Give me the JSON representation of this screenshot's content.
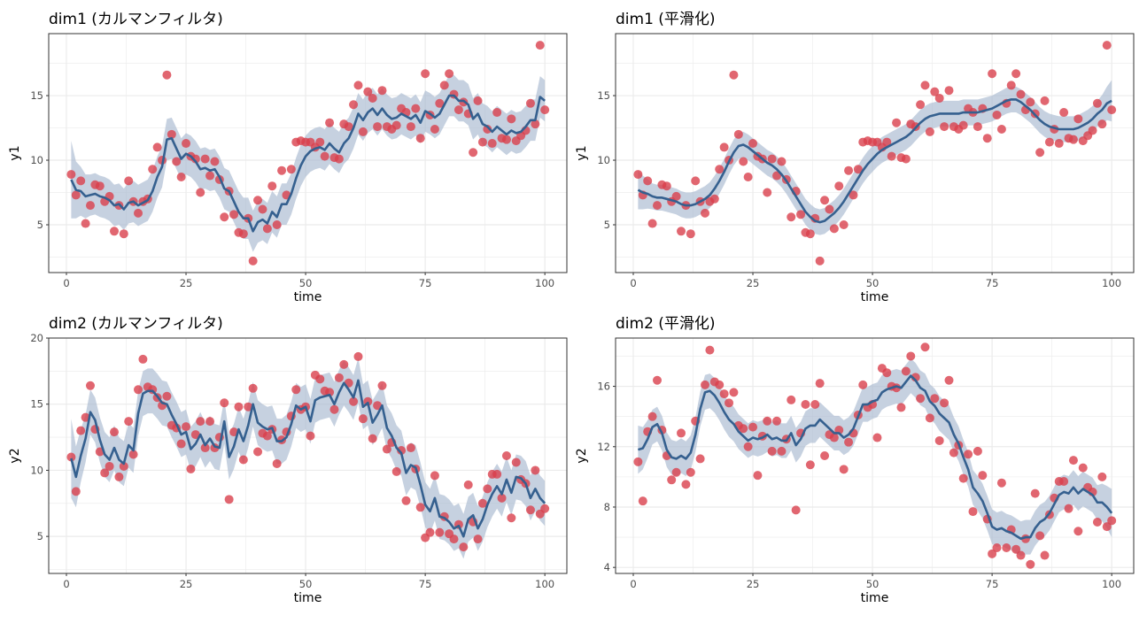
{
  "colors": {
    "point": "#d9404c",
    "line": "#35608f",
    "band": "#a7b9d0",
    "grid": "#ebebeb",
    "border": "#333333"
  },
  "series": {
    "y1_obs": [
      8.9,
      7.3,
      8.4,
      5.1,
      6.5,
      8.1,
      8.0,
      6.8,
      7.2,
      4.5,
      6.5,
      4.3,
      8.4,
      6.8,
      5.9,
      6.8,
      7.0,
      9.3,
      11.0,
      10.0,
      16.6,
      12.0,
      9.9,
      8.7,
      11.3,
      10.3,
      10.1,
      7.5,
      10.1,
      8.8,
      9.9,
      8.5,
      5.6,
      7.6,
      5.8,
      4.4,
      4.3,
      5.5,
      2.2,
      6.9,
      6.2,
      4.7,
      8.0,
      5.0,
      9.2,
      7.3,
      9.3,
      11.4,
      11.5,
      11.4,
      11.4,
      11.0,
      11.4,
      10.3,
      12.9,
      10.2,
      10.1,
      12.8,
      12.6,
      14.3,
      15.8,
      12.2,
      15.3,
      14.8,
      12.6,
      15.4,
      12.6,
      12.4,
      12.7,
      14.0,
      13.7,
      12.6,
      14.0,
      11.7,
      16.7,
      13.5,
      12.4,
      14.4,
      15.8,
      16.7,
      15.1,
      13.9,
      14.5,
      13.6,
      10.6,
      14.6,
      11.4,
      12.4,
      11.3,
      13.7,
      11.7,
      11.6,
      13.2,
      11.5,
      11.9,
      12.3,
      14.4,
      12.8,
      18.9,
      13.9
    ],
    "y2_obs": [
      11.0,
      8.4,
      13.0,
      14.0,
      16.4,
      13.1,
      11.4,
      9.8,
      10.3,
      12.9,
      9.5,
      10.3,
      13.7,
      11.2,
      16.1,
      18.4,
      16.3,
      16.1,
      15.5,
      14.9,
      15.6,
      13.4,
      13.2,
      12.0,
      13.3,
      10.1,
      12.7,
      13.7,
      11.7,
      13.7,
      11.7,
      12.5,
      15.1,
      7.8,
      12.9,
      14.8,
      10.8,
      14.8,
      16.2,
      11.4,
      12.8,
      12.6,
      13.1,
      10.5,
      12.3,
      12.9,
      14.1,
      16.1,
      14.6,
      14.8,
      12.6,
      17.2,
      16.9,
      16.0,
      15.9,
      14.6,
      17.0,
      18.0,
      16.6,
      15.2,
      18.6,
      13.9,
      15.2,
      12.4,
      14.9,
      16.4,
      11.6,
      12.1,
      9.9,
      11.5,
      7.7,
      11.7,
      10.1,
      7.2,
      4.9,
      5.3,
      9.6,
      5.3,
      6.5,
      5.2,
      4.8,
      5.9,
      4.2,
      8.9,
      6.1,
      4.8,
      7.5,
      8.6,
      9.7,
      9.7,
      7.9,
      11.1,
      6.4,
      10.6,
      9.3,
      9.0,
      7.0,
      10.0,
      6.7,
      7.1
    ],
    "y1_filtered": [
      8.5,
      7.7,
      7.6,
      7.2,
      7.3,
      7.4,
      7.2,
      7.1,
      6.9,
      6.5,
      6.6,
      6.2,
      6.7,
      6.8,
      6.5,
      6.7,
      6.9,
      7.6,
      8.7,
      9.5,
      11.6,
      11.7,
      10.9,
      10.1,
      10.5,
      10.3,
      9.9,
      9.3,
      9.4,
      9.2,
      9.3,
      8.7,
      7.8,
      7.6,
      6.8,
      6.0,
      5.5,
      5.5,
      4.5,
      5.2,
      5.4,
      5.1,
      6.0,
      5.6,
      6.6,
      6.6,
      7.4,
      8.6,
      9.6,
      10.3,
      10.7,
      10.9,
      11.0,
      10.8,
      11.3,
      10.9,
      10.6,
      11.3,
      11.7,
      12.5,
      13.6,
      13.1,
      13.7,
      14.0,
      13.5,
      14.0,
      13.5,
      13.2,
      13.3,
      13.6,
      13.4,
      13.2,
      13.5,
      12.9,
      13.8,
      13.6,
      13.3,
      13.6,
      14.3,
      15.0,
      15.0,
      14.6,
      14.6,
      14.3,
      13.2,
      13.6,
      12.8,
      12.6,
      12.2,
      12.6,
      12.3,
      12.0,
      12.3,
      12.1,
      12.2,
      12.6,
      13.1,
      13.1,
      14.9,
      14.6
    ],
    "y1_smoothed": [
      7.7,
      7.5,
      7.4,
      7.2,
      7.1,
      7.1,
      7.0,
      6.9,
      6.8,
      6.6,
      6.5,
      6.5,
      6.6,
      6.8,
      7.0,
      7.3,
      7.8,
      8.4,
      9.1,
      9.9,
      10.6,
      11.1,
      11.2,
      11.0,
      10.7,
      10.4,
      10.1,
      9.8,
      9.6,
      9.3,
      8.9,
      8.4,
      7.8,
      7.2,
      6.6,
      6.0,
      5.6,
      5.3,
      5.2,
      5.3,
      5.6,
      5.9,
      6.3,
      6.8,
      7.4,
      8.0,
      8.6,
      9.2,
      9.7,
      10.1,
      10.5,
      10.8,
      11.0,
      11.2,
      11.4,
      11.6,
      11.8,
      12.1,
      12.5,
      12.9,
      13.2,
      13.4,
      13.5,
      13.6,
      13.6,
      13.6,
      13.6,
      13.6,
      13.7,
      13.7,
      13.7,
      13.7,
      13.8,
      13.9,
      14.0,
      14.2,
      14.4,
      14.6,
      14.7,
      14.7,
      14.5,
      14.2,
      13.9,
      13.5,
      13.1,
      12.8,
      12.6,
      12.5,
      12.4,
      12.4,
      12.4,
      12.4,
      12.5,
      12.7,
      12.9,
      13.2,
      13.6,
      13.9,
      14.4,
      14.6
    ],
    "y2_filtered": [
      10.9,
      9.5,
      11.1,
      12.4,
      14.4,
      13.8,
      12.3,
      11.2,
      10.8,
      11.7,
      10.8,
      10.5,
      11.9,
      11.5,
      14.3,
      15.8,
      16.0,
      16.0,
      15.6,
      15.1,
      15.0,
      14.2,
      13.5,
      12.7,
      12.9,
      11.6,
      12.0,
      12.7,
      11.9,
      12.4,
      11.8,
      11.7,
      13.7,
      11.0,
      11.8,
      13.1,
      12.2,
      13.4,
      15.0,
      13.6,
      13.3,
      13.1,
      13.2,
      12.2,
      12.2,
      12.5,
      13.5,
      14.9,
      14.6,
      14.8,
      13.7,
      15.3,
      15.5,
      15.6,
      15.7,
      15.0,
      15.9,
      16.6,
      16.1,
      15.5,
      16.8,
      14.8,
      15.1,
      13.6,
      14.2,
      14.9,
      13.2,
      12.6,
      11.7,
      11.3,
      9.8,
      10.4,
      10.2,
      8.9,
      7.4,
      6.9,
      7.9,
      6.5,
      6.4,
      6.1,
      5.6,
      5.8,
      5.0,
      6.3,
      6.6,
      5.6,
      6.3,
      7.4,
      8.2,
      8.8,
      8.2,
      9.3,
      8.3,
      9.5,
      9.4,
      9.0,
      7.9,
      8.6,
      7.9,
      7.5
    ],
    "y2_smoothed": [
      11.8,
      11.9,
      12.5,
      13.3,
      13.5,
      12.9,
      11.8,
      11.3,
      11.2,
      11.4,
      11.2,
      11.6,
      12.8,
      14.5,
      15.6,
      15.7,
      15.4,
      14.9,
      14.3,
      13.8,
      13.5,
      13.0,
      12.7,
      12.4,
      12.6,
      12.5,
      12.6,
      12.8,
      12.5,
      12.6,
      12.4,
      12.4,
      12.9,
      12.1,
      12.5,
      13.2,
      13.4,
      13.4,
      13.8,
      13.5,
      13.2,
      12.9,
      12.9,
      12.6,
      12.8,
      13.2,
      14.0,
      14.8,
      14.8,
      15.0,
      15.1,
      15.6,
      15.8,
      15.9,
      16.0,
      15.9,
      16.3,
      16.7,
      16.4,
      15.9,
      15.7,
      15.0,
      14.7,
      14.2,
      13.9,
      13.6,
      12.8,
      12.2,
      11.3,
      10.5,
      9.3,
      8.9,
      8.4,
      7.6,
      6.7,
      6.5,
      6.6,
      6.4,
      6.3,
      6.1,
      5.9,
      6.0,
      6.0,
      6.6,
      7.0,
      7.2,
      7.6,
      8.2,
      8.8,
      9.0,
      8.9,
      9.3,
      8.9,
      9.2,
      9.0,
      8.8,
      8.3,
      8.3,
      8.0,
      7.6
    ]
  },
  "chart_data": [
    {
      "type": "line",
      "title": "dim1 (カルマンフィルタ)",
      "xlabel": "time",
      "ylabel": "y1",
      "x": "1..100",
      "observed": "y1_obs",
      "mean": "y1_filtered",
      "band_halfwidth_start": [
        3.0,
        2.2,
        1.9,
        1.7
      ],
      "band_halfwidth_end": [],
      "band_halfwidth": 1.6,
      "xlim": [
        -3.7,
        104.6
      ],
      "ylim": [
        1.3,
        19.8
      ],
      "xticks": [
        "0",
        "25",
        "50",
        "75",
        "100"
      ],
      "yticks": [
        "5",
        "10",
        "15"
      ],
      "grid": true
    },
    {
      "type": "line",
      "title": "dim1 (平滑化)",
      "xlabel": "time",
      "ylabel": "y1",
      "x": "1..100",
      "observed": "y1_obs",
      "mean": "y1_smoothed",
      "band_halfwidth_start": [
        1.5,
        1.3,
        1.15
      ],
      "band_halfwidth_end": [
        1.15,
        1.3,
        1.6
      ],
      "band_halfwidth": 1.0,
      "xlim": [
        -3.7,
        104.6
      ],
      "ylim": [
        1.3,
        19.8
      ],
      "xticks": [
        "0",
        "25",
        "50",
        "75",
        "100"
      ],
      "yticks": [
        "5",
        "10",
        "15"
      ],
      "grid": true
    },
    {
      "type": "line",
      "title": "dim2 (カルマンフィルタ)",
      "xlabel": "time",
      "ylabel": "y2",
      "x": "1..100",
      "observed": "y2_obs",
      "mean": "y2_filtered",
      "band_halfwidth_start": [
        3.0,
        2.3,
        2.0,
        1.8
      ],
      "band_halfwidth_end": [],
      "band_halfwidth": 1.7,
      "xlim": [
        -3.7,
        104.6
      ],
      "ylim": [
        2.2,
        20
      ],
      "xticks": [
        "0",
        "25",
        "50",
        "75",
        "100"
      ],
      "yticks": [
        "5",
        "10",
        "15",
        "20"
      ],
      "grid": true
    },
    {
      "type": "line",
      "title": "dim2 (平滑化)",
      "xlabel": "time",
      "ylabel": "y2",
      "x": "1..100",
      "observed": "y2_obs",
      "mean": "y2_smoothed",
      "band_halfwidth_start": [
        1.6,
        1.4,
        1.25
      ],
      "band_halfwidth_end": [
        1.25,
        1.4,
        1.6
      ],
      "band_halfwidth": 1.15,
      "xlim": [
        -3.7,
        104.6
      ],
      "ylim": [
        3.6,
        19.2
      ],
      "xticks": [
        "0",
        "25",
        "50",
        "75",
        "100"
      ],
      "yticks": [
        "4",
        "8",
        "12",
        "16"
      ],
      "grid": true
    }
  ]
}
